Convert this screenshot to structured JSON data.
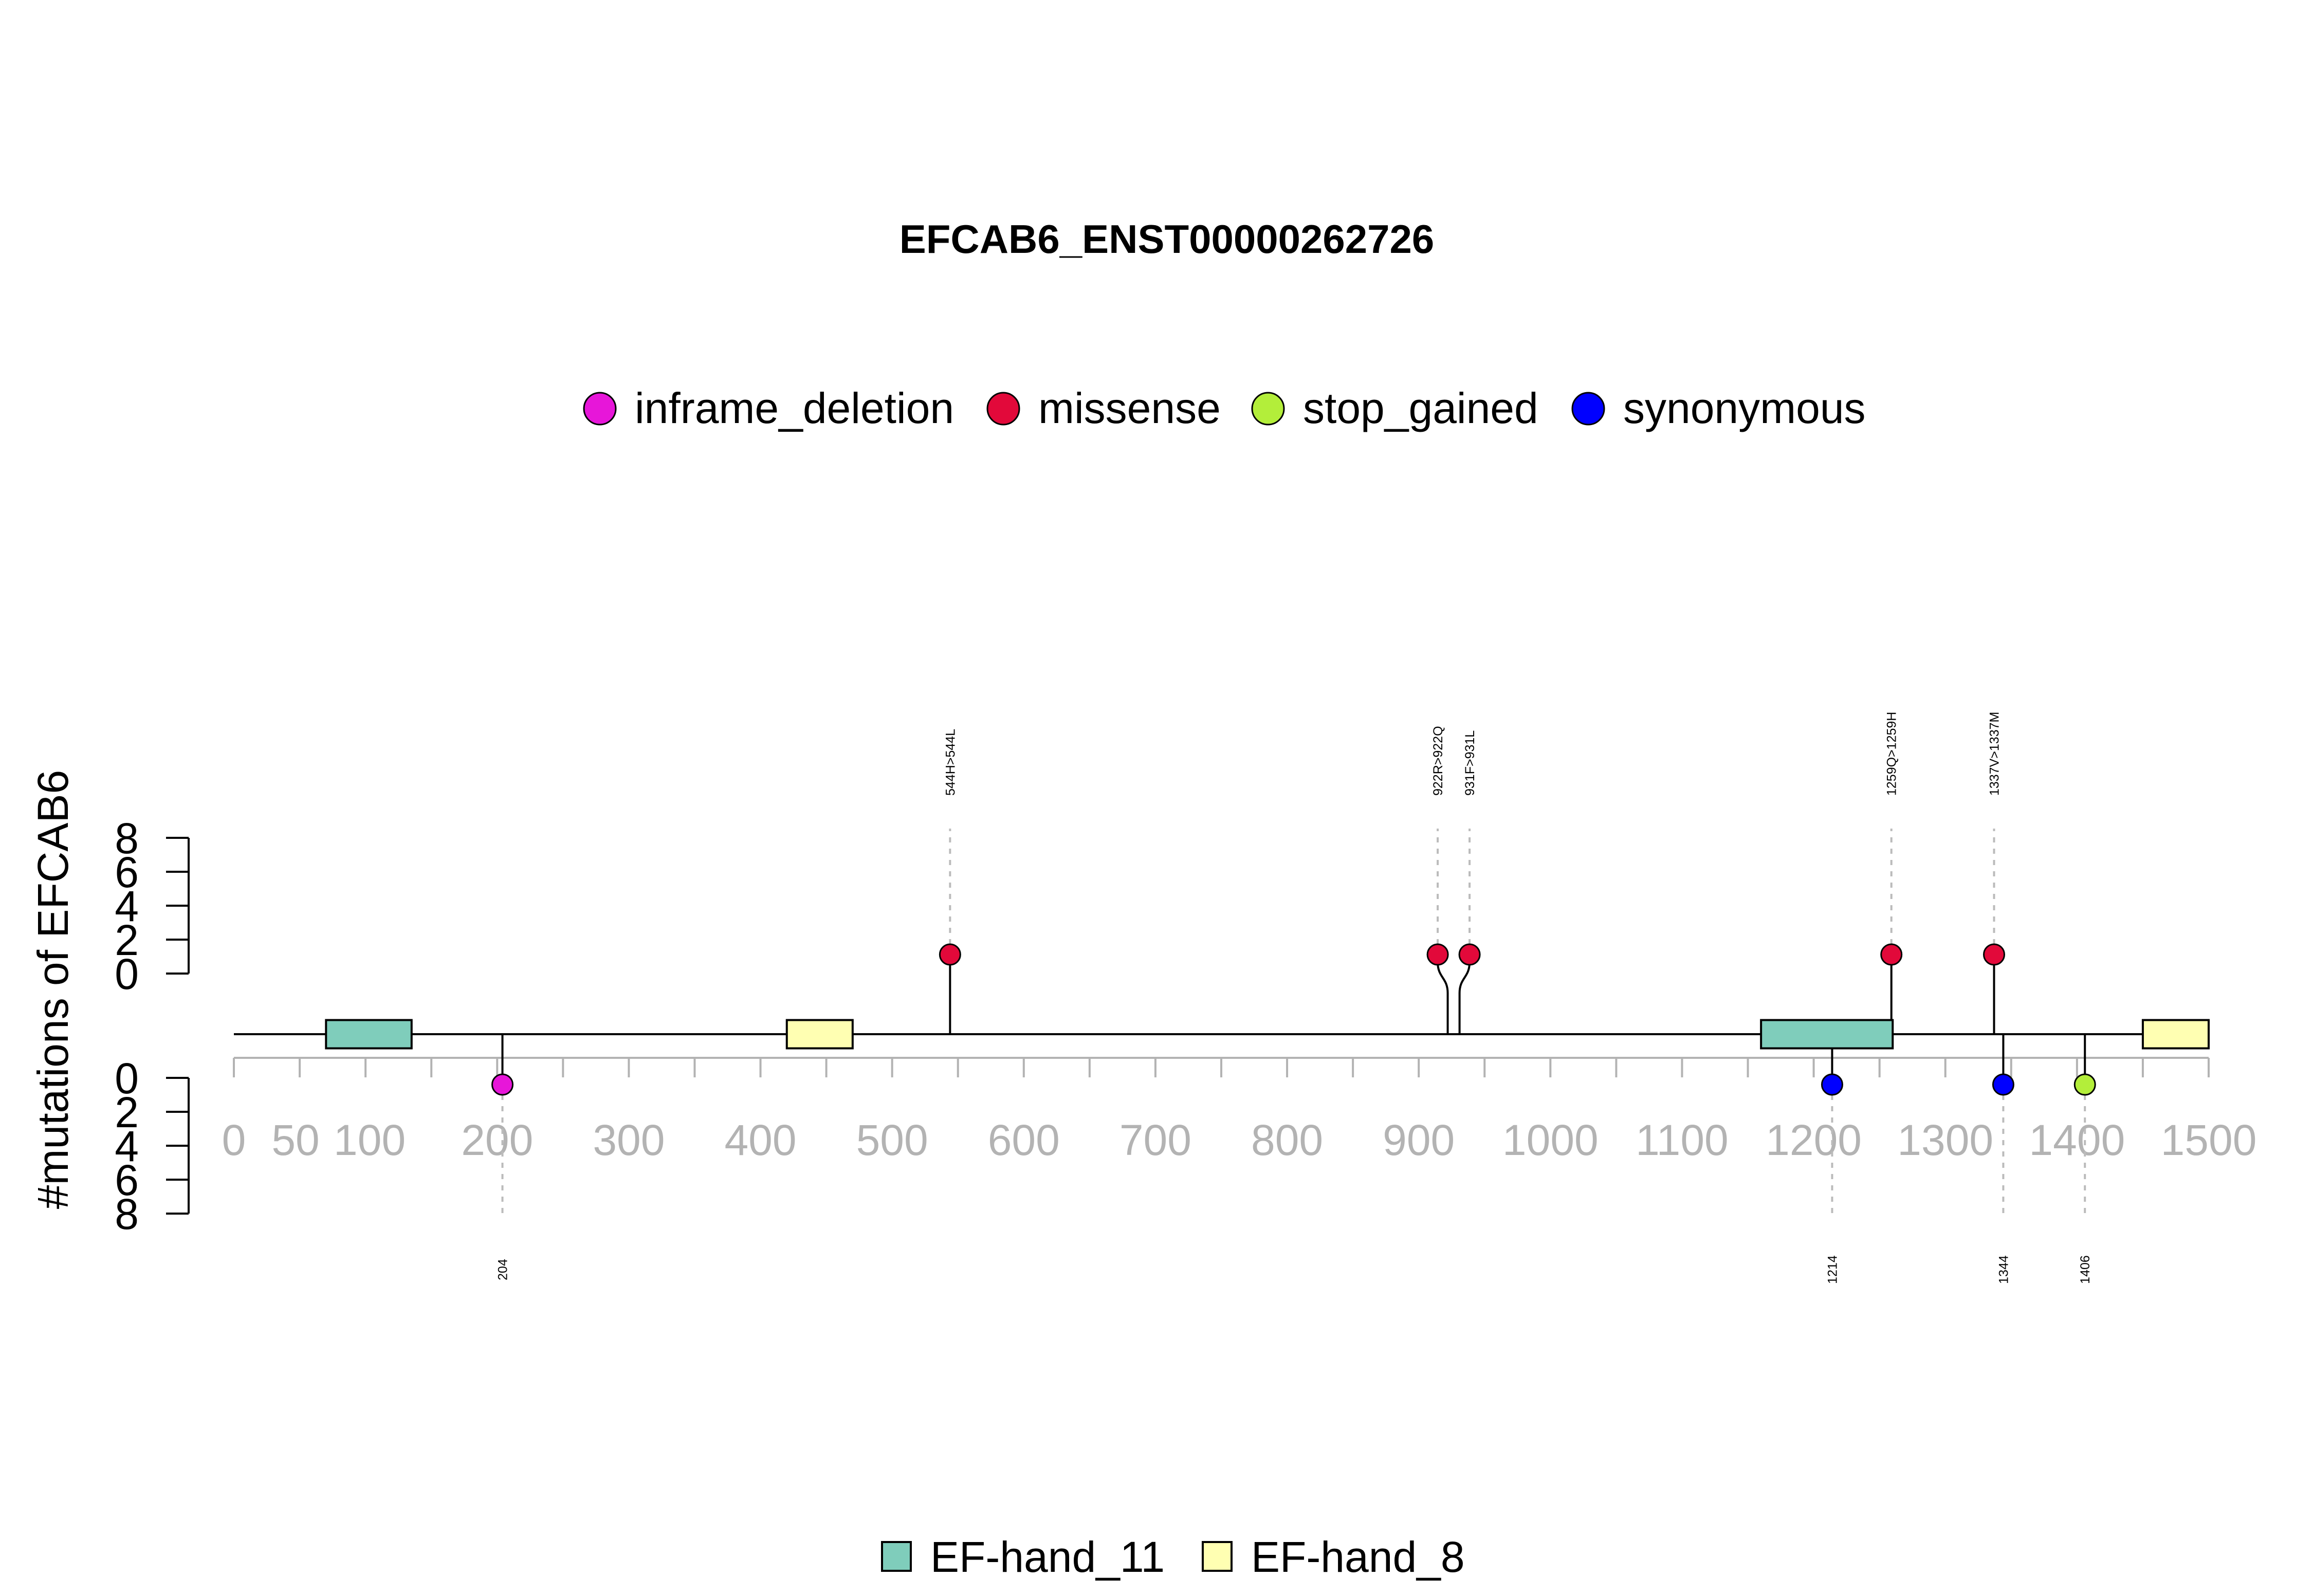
{
  "chart_data": {
    "type": "lollipop",
    "title": "EFCAB6_ENST00000262726",
    "ylabel": "#mutations of EFCAB6",
    "xlim": [
      0,
      1500
    ],
    "x_ticks": [
      0,
      50,
      100,
      200,
      300,
      400,
      500,
      600,
      700,
      800,
      900,
      1000,
      1100,
      1200,
      1300,
      1400,
      1500
    ],
    "y_ticks_top": [
      0,
      2,
      4,
      6,
      8
    ],
    "y_ticks_bottom": [
      0,
      2,
      4,
      6,
      8
    ],
    "mutation_legend": [
      {
        "label": "inframe_deletion",
        "color": "#E716D9"
      },
      {
        "label": "missense",
        "color": "#E2093A"
      },
      {
        "label": "stop_gained",
        "color": "#B3EE3A"
      },
      {
        "label": "synonymous",
        "color": "#0000FF"
      }
    ],
    "domain_legend": [
      {
        "label": "EF-hand_11",
        "color": "#7FCDBB"
      },
      {
        "label": "EF-hand_8",
        "color": "#FFFFB2"
      }
    ],
    "domains": [
      {
        "name": "EF-hand_11",
        "start": 70,
        "end": 135
      },
      {
        "name": "EF-hand_8",
        "start": 420,
        "end": 470
      },
      {
        "name": "EF-hand_11",
        "start": 1160,
        "end": 1260
      },
      {
        "name": "EF-hand_8",
        "start": 1450,
        "end": 1500
      }
    ],
    "mutations_top": [
      {
        "position": 544,
        "label": "544H>544L",
        "count": 1,
        "type": "missense"
      },
      {
        "position": 922,
        "label": "922R>922Q",
        "count": 1,
        "type": "missense"
      },
      {
        "position": 931,
        "label": "931F>931L",
        "count": 1,
        "type": "missense"
      },
      {
        "position": 1259,
        "label": "1259Q>1259H",
        "count": 1,
        "type": "missense"
      },
      {
        "position": 1337,
        "label": "1337V>1337M",
        "count": 1,
        "type": "missense"
      }
    ],
    "mutations_bottom": [
      {
        "position": 204,
        "label": "204",
        "count": 1,
        "type": "inframe_deletion"
      },
      {
        "position": 1214,
        "label": "1214",
        "count": 1,
        "type": "synonymous"
      },
      {
        "position": 1344,
        "label": "1344",
        "count": 1,
        "type": "synonymous"
      },
      {
        "position": 1406,
        "label": "1406",
        "count": 1,
        "type": "stop_gained"
      }
    ]
  }
}
